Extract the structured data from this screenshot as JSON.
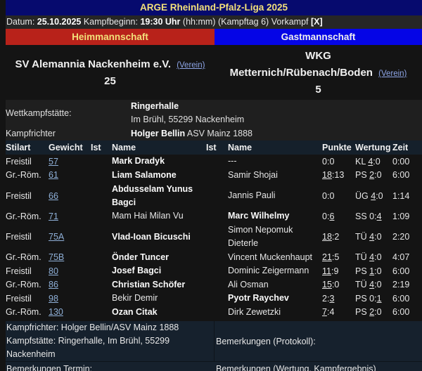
{
  "header": {
    "title": "ARGE Rheinland-Pfalz-Liga 2025",
    "date_label": "Datum:",
    "date": "25.10.2025",
    "start_label": "Kampfbeginn:",
    "start_time": "19:30 Uhr",
    "time_format": "(hh:mm)",
    "matchday": "(Kampftag 6)",
    "prelim_label": "Vorkampf",
    "prelim_value": "[X]"
  },
  "teams": {
    "home_label": "Heimmannschaft",
    "guest_label": "Gastmannschaft",
    "home_name": "SV Alemannia Nackenheim e.V.",
    "home_link": "(Verein)",
    "home_score": "25",
    "guest_name_line1": "WKG",
    "guest_name_line2": "Metternich/Rübenach/Boden",
    "guest_link": "(Verein)",
    "guest_score": "5",
    "home_color": "#b8221a",
    "guest_color": "#0505e6",
    "title_bg": "#060a6e"
  },
  "info": {
    "venue_label": "Wettkampfstätte:",
    "venue_name": "Ringerhalle",
    "venue_address": "Im Brühl, 55299 Nackenheim",
    "referee_label": "Kampfrichter",
    "referee_name": "Holger Bellin",
    "referee_club": "ASV Mainz 1888"
  },
  "table": {
    "headers": [
      "Stilart",
      "Gewicht",
      "Ist",
      "Name",
      "Ist",
      "Name",
      "Punkte",
      "Wertung",
      "Zeit"
    ],
    "rows": [
      {
        "stil": "Freistil",
        "gew": "57",
        "home": "Mark Dradyk",
        "guest": "---",
        "pkt_a": "0",
        "pkt_b": "0",
        "w_type": "KL",
        "w_a": "4",
        "w_b": "0",
        "zeit": "0:00"
      },
      {
        "stil": "Gr.-Röm.",
        "gew": "61",
        "home": "Liam Salamone",
        "guest": "Samir Shojai",
        "pkt_a": "18",
        "pkt_b": "13",
        "w_type": "PS",
        "w_a": "2",
        "w_b": "0",
        "zeit": "6:00"
      },
      {
        "stil": "Freistil",
        "gew": "66",
        "home": "Abdusselam Yunus Bagci",
        "home_l1": "Abdusselam Yunus",
        "home_l2": "Bagci",
        "guest": "Jannis Pauli",
        "pkt_a": "0",
        "pkt_b": "0",
        "w_type": "ÜG",
        "w_a": "4",
        "w_b": "0",
        "zeit": "1:14"
      },
      {
        "stil": "Gr.-Röm.",
        "gew": "71",
        "home": "Mam Hai Milan Vu",
        "guest": "Marc Wilhelmy",
        "pkt_a": "0",
        "pkt_b": "6",
        "w_type": "SS",
        "w_a": "0",
        "w_b": "4",
        "zeit": "1:09"
      },
      {
        "stil": "Freistil",
        "gew": "75A",
        "home": "Vlad-Ioan Bicuschi",
        "guest": "Simon Nepomuk Dieterle",
        "guest_l1": "Simon Nepomuk",
        "guest_l2": "Dieterle",
        "pkt_a": "18",
        "pkt_b": "2",
        "w_type": "TÜ",
        "w_a": "4",
        "w_b": "0",
        "zeit": "2:20"
      },
      {
        "stil": "Gr.-Röm.",
        "gew": "75B",
        "home": "Önder Tuncer",
        "guest": "Vincent Muckenhaupt",
        "pkt_a": "21",
        "pkt_b": "5",
        "w_type": "TÜ",
        "w_a": "4",
        "w_b": "0",
        "zeit": "4:07"
      },
      {
        "stil": "Freistil",
        "gew": "80",
        "home": "Josef Bagci",
        "guest": "Dominic Zeigermann",
        "pkt_a": "11",
        "pkt_b": "9",
        "w_type": "PS",
        "w_a": "1",
        "w_b": "0",
        "zeit": "6:00"
      },
      {
        "stil": "Gr.-Röm.",
        "gew": "86",
        "home": "Christian Schöfer",
        "guest": "Ali Osman",
        "pkt_a": "15",
        "pkt_b": "0",
        "w_type": "TÜ",
        "w_a": "4",
        "w_b": "0",
        "zeit": "2:19"
      },
      {
        "stil": "Freistil",
        "gew": "98",
        "home": "Bekir Demir",
        "guest": "Pyotr Raychev",
        "pkt_a": "2",
        "pkt_b": "3",
        "w_type": "PS",
        "w_a": "0",
        "w_b": "1",
        "zeit": "6:00"
      },
      {
        "stil": "Gr.-Röm.",
        "gew": "130",
        "home": "Ozan Citak",
        "guest": "Dirk Zewetzki",
        "pkt_a": "7",
        "pkt_b": "4",
        "w_type": "PS",
        "w_a": "2",
        "w_b": "0",
        "zeit": "6:00"
      }
    ]
  },
  "footer": {
    "referee_line": "Kampfrichter: Holger Bellin/ASV Mainz 1888",
    "venue_line1": "Kampfstätte: Ringerhalle, Im Brühl, 55299",
    "venue_line2": "Nackenheim",
    "remarks_protocol": "Bemerkungen (Protokoll):",
    "remarks_date": "Bemerkungen Termin:",
    "remarks_result": "Bemerkungen (Wertung, Kampfergebnis)"
  }
}
